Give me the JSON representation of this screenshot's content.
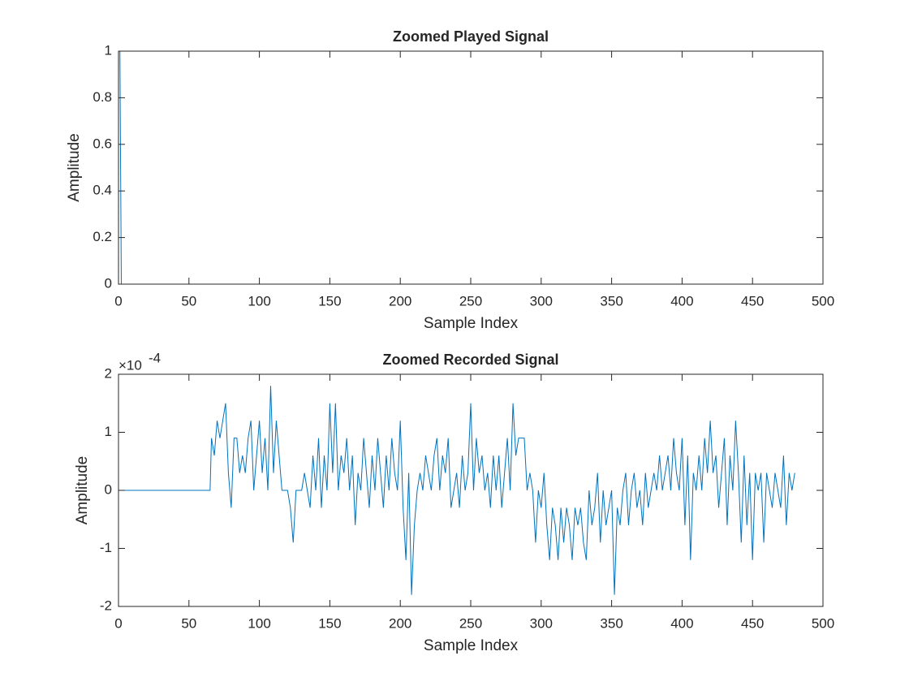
{
  "chart_data": [
    {
      "type": "line",
      "title": "Zoomed Played Signal",
      "xlabel": "Sample Index",
      "ylabel": "Amplitude",
      "x": [
        1,
        2,
        480
      ],
      "values": [
        1,
        0,
        0
      ],
      "color": "#0072bd",
      "xlim": [
        0,
        500
      ],
      "xticks": [
        0,
        50,
        100,
        150,
        200,
        250,
        300,
        350,
        400,
        450,
        500
      ],
      "ylim": [
        0,
        1
      ],
      "yticks": [
        0,
        0.2,
        0.4,
        0.6,
        0.8,
        1
      ]
    },
    {
      "type": "line",
      "title": "Zoomed Recorded Signal",
      "xlabel": "Sample Index",
      "ylabel": "Amplitude",
      "y_exponent": {
        "base": "×10",
        "power": "-4"
      },
      "x": [
        1,
        65,
        66,
        68,
        70,
        72,
        74,
        76,
        78,
        80,
        82,
        84,
        86,
        88,
        90,
        92,
        94,
        96,
        98,
        100,
        102,
        104,
        106,
        108,
        110,
        112,
        114,
        116,
        118,
        120,
        122,
        124,
        126,
        128,
        130,
        132,
        134,
        136,
        138,
        140,
        142,
        144,
        146,
        148,
        150,
        152,
        154,
        156,
        158,
        160,
        162,
        164,
        166,
        168,
        170,
        172,
        174,
        176,
        178,
        180,
        182,
        184,
        186,
        188,
        190,
        192,
        194,
        196,
        198,
        200,
        202,
        204,
        206,
        208,
        210,
        212,
        214,
        216,
        218,
        220,
        222,
        224,
        226,
        228,
        230,
        232,
        234,
        236,
        238,
        240,
        242,
        244,
        246,
        248,
        250,
        252,
        254,
        256,
        258,
        260,
        262,
        264,
        266,
        268,
        270,
        272,
        274,
        276,
        278,
        280,
        282,
        284,
        286,
        288,
        290,
        292,
        294,
        296,
        298,
        300,
        302,
        304,
        306,
        308,
        310,
        312,
        314,
        316,
        318,
        320,
        322,
        324,
        326,
        328,
        330,
        332,
        334,
        336,
        338,
        340,
        342,
        344,
        346,
        348,
        350,
        352,
        354,
        356,
        358,
        360,
        362,
        364,
        366,
        368,
        370,
        372,
        374,
        376,
        378,
        380,
        382,
        384,
        386,
        388,
        390,
        392,
        394,
        396,
        398,
        400,
        402,
        404,
        406,
        408,
        410,
        412,
        414,
        416,
        418,
        420,
        422,
        424,
        426,
        428,
        430,
        432,
        434,
        436,
        438,
        440,
        442,
        444,
        446,
        448,
        450,
        452,
        454,
        456,
        458,
        460,
        462,
        464,
        466,
        468,
        470,
        472,
        474,
        476,
        478,
        480
      ],
      "values": [
        0,
        0,
        0.9,
        0.6,
        1.2,
        0.9,
        1.2,
        1.5,
        0.3,
        -0.3,
        0.9,
        0.9,
        0.3,
        0.6,
        0.3,
        0.9,
        1.2,
        0,
        0.6,
        1.2,
        0.3,
        0.9,
        0,
        1.8,
        0.3,
        1.2,
        0.6,
        0,
        0,
        0,
        -0.3,
        -0.9,
        0,
        0,
        0,
        0.3,
        0,
        -0.3,
        0.6,
        0,
        0.9,
        -0.3,
        0.6,
        0,
        1.5,
        0.3,
        1.5,
        0,
        0.6,
        0.3,
        0.9,
        0,
        0.6,
        -0.6,
        0.3,
        0,
        0.9,
        0.3,
        -0.3,
        0.6,
        0,
        0.9,
        0.3,
        -0.3,
        0.6,
        0,
        0.9,
        0.3,
        0,
        1.2,
        -0.3,
        -1.2,
        0.3,
        -1.8,
        -0.6,
        0,
        0.3,
        0,
        0.6,
        0.3,
        0,
        0.6,
        0.9,
        0,
        0.6,
        0.3,
        0.9,
        -0.3,
        0,
        0.3,
        -0.3,
        0.6,
        0,
        0.3,
        1.5,
        0,
        0.9,
        0.3,
        0.6,
        0,
        0.3,
        -0.3,
        0.6,
        0,
        0.6,
        -0.3,
        0.3,
        0.9,
        0,
        1.5,
        0.6,
        0.9,
        0.9,
        0.9,
        0,
        0.3,
        0,
        -0.9,
        0,
        -0.3,
        0.3,
        -0.6,
        -1.2,
        -0.3,
        -0.6,
        -1.2,
        -0.3,
        -0.9,
        -0.3,
        -0.6,
        -1.2,
        -0.3,
        -0.6,
        -0.3,
        -0.9,
        -1.2,
        0,
        -0.6,
        -0.3,
        0.3,
        -0.9,
        0,
        -0.6,
        -0.3,
        0,
        -1.8,
        -0.3,
        -0.6,
        0,
        0.3,
        -0.6,
        0,
        0.3,
        -0.3,
        0,
        -0.6,
        0.3,
        -0.3,
        0,
        0.3,
        0,
        0.6,
        0,
        0.3,
        0.6,
        0,
        0.9,
        0.3,
        0,
        0.9,
        -0.6,
        0.6,
        -1.2,
        0.3,
        0,
        0.6,
        0,
        0.9,
        0.3,
        1.2,
        0.3,
        0.6,
        -0.3,
        0.3,
        0.9,
        -0.6,
        0.6,
        0,
        1.2,
        0.3,
        -0.9,
        0.6,
        -0.6,
        0.3,
        -1.2,
        0.3,
        0,
        0.3,
        -0.9,
        0.3,
        0,
        -0.3,
        0.3,
        0,
        -0.3,
        0.6,
        -0.6,
        0.3,
        0,
        0.3
      ],
      "color": "#0072bd",
      "xlim": [
        0,
        500
      ],
      "xticks": [
        0,
        50,
        100,
        150,
        200,
        250,
        300,
        350,
        400,
        450,
        500
      ],
      "ylim": [
        -2,
        2
      ],
      "yticks": [
        -2,
        -1,
        0,
        1,
        2
      ]
    }
  ]
}
